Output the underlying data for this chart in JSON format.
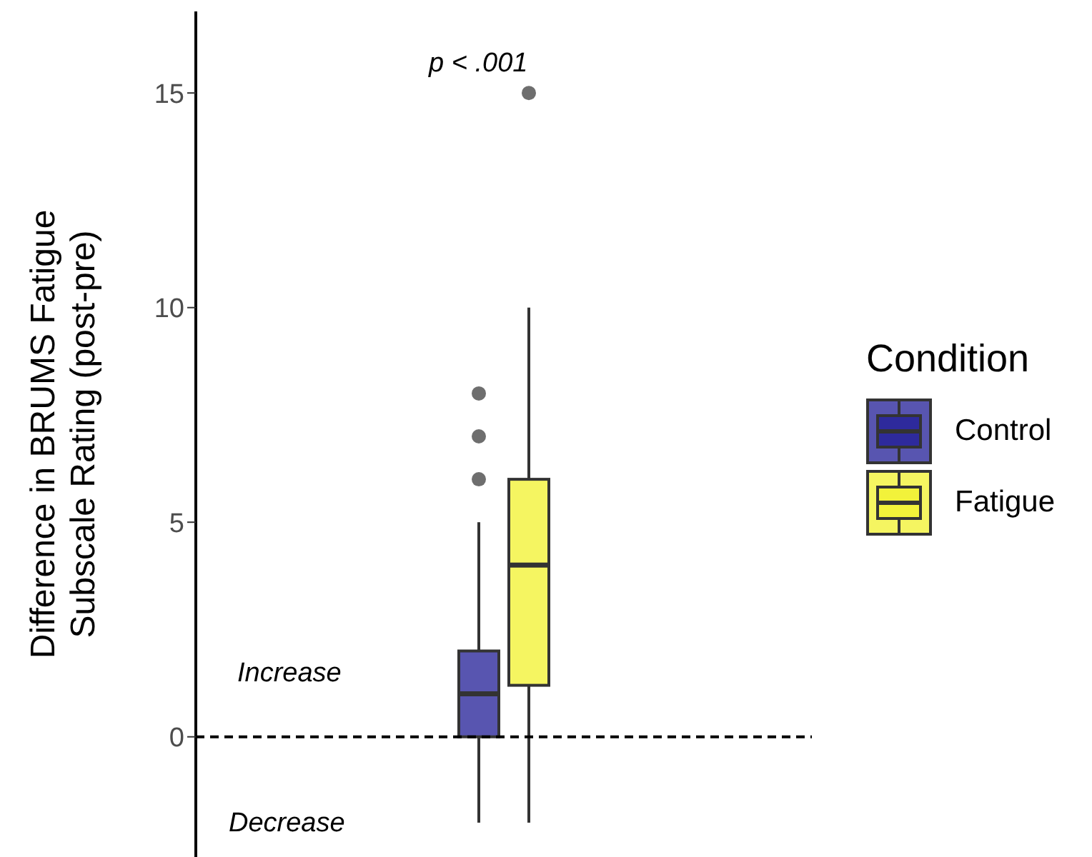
{
  "chart_data": {
    "type": "box",
    "ylabel": "Difference in BRUMS Fatigue\nSubscale Rating (post-pre)",
    "legend_title": "Condition",
    "categories": [
      null
    ],
    "series": [
      {
        "name": "Control",
        "color": "#2e2a9c",
        "boxes": [
          {
            "low": -2,
            "q1": 0,
            "median": 1,
            "q3": 2,
            "high": 5,
            "outliers": [
              6,
              7,
              8
            ]
          }
        ]
      },
      {
        "name": "Fatigue",
        "color": "#f2f23a",
        "boxes": [
          {
            "low": -2,
            "q1": 1.2,
            "median": 4,
            "q3": 6,
            "high": 10,
            "outliers": [
              15
            ]
          }
        ]
      }
    ],
    "ylim": [
      -2.8,
      16.9
    ],
    "yticks": [
      0,
      5,
      10,
      15
    ],
    "grid": false,
    "legend": "right",
    "tick_labels": "y",
    "ref_lines": [
      {
        "axis": "y",
        "value": 0,
        "line_style": "dashed",
        "color": "#000000"
      }
    ],
    "annotations": [
      "p < .001",
      "Increase",
      "Decrease"
    ]
  }
}
